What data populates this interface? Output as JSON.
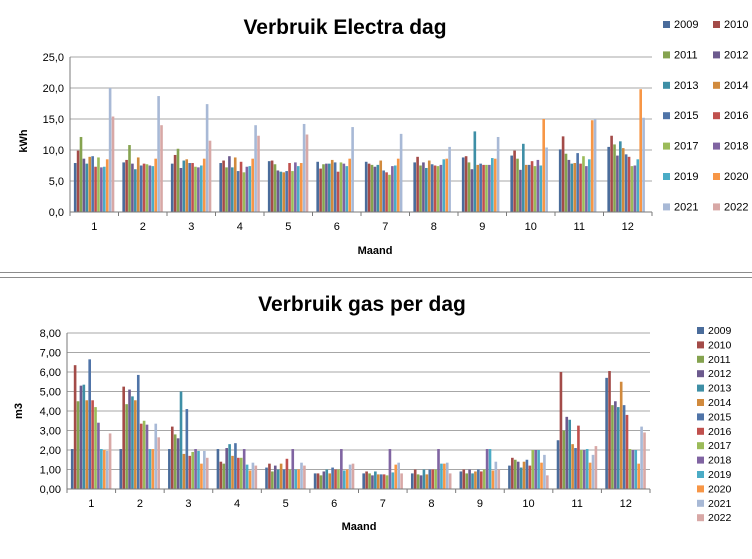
{
  "chart_data": [
    {
      "type": "bar",
      "title": "Verbruik Electra dag",
      "xlabel": "Maand",
      "ylabel": "kWh",
      "ylim": [
        0,
        25
      ],
      "yticks": [
        "0,0",
        "5,0",
        "10,0",
        "15,0",
        "20,0",
        "25,0"
      ],
      "grid": true,
      "legend_position": "right",
      "categories": [
        "1",
        "2",
        "3",
        "4",
        "5",
        "6",
        "7",
        "8",
        "9",
        "10",
        "11",
        "12"
      ],
      "series": [
        {
          "name": "2009",
          "color": "#4a6c9b",
          "values": [
            7.9,
            8.0,
            7.8,
            7.9,
            8.2,
            8.1,
            8.1,
            8.0,
            8.8,
            9.1,
            10.1,
            10.5
          ]
        },
        {
          "name": "2010",
          "color": "#a34b48",
          "values": [
            9.9,
            8.4,
            9.2,
            8.3,
            8.3,
            7.0,
            7.8,
            8.9,
            9.0,
            9.9,
            12.2,
            12.3
          ]
        },
        {
          "name": "2011",
          "color": "#85a34f",
          "values": [
            12.1,
            10.8,
            10.2,
            7.2,
            7.7,
            7.7,
            7.6,
            7.5,
            8.0,
            8.6,
            9.4,
            10.9
          ]
        },
        {
          "name": "2012",
          "color": "#6c5a8e",
          "values": [
            8.6,
            7.8,
            7.1,
            9.0,
            6.7,
            7.8,
            7.3,
            8.0,
            6.9,
            6.8,
            8.4,
            9.1
          ]
        },
        {
          "name": "2013",
          "color": "#3e8fa6",
          "values": [
            7.8,
            6.9,
            8.3,
            7.2,
            6.5,
            7.8,
            7.6,
            7.1,
            13.0,
            11.0,
            7.8,
            11.4
          ]
        },
        {
          "name": "2014",
          "color": "#d18a3d",
          "values": [
            8.9,
            8.8,
            8.5,
            8.8,
            6.4,
            8.4,
            8.3,
            8.3,
            7.6,
            7.6,
            7.9,
            10.3
          ]
        },
        {
          "name": "2015",
          "color": "#4f74a8",
          "values": [
            9.0,
            7.5,
            7.9,
            6.6,
            6.6,
            8.0,
            6.7,
            7.7,
            7.8,
            7.6,
            9.5,
            9.3
          ]
        },
        {
          "name": "2016",
          "color": "#c0504d",
          "values": [
            7.3,
            7.8,
            7.9,
            8.1,
            7.9,
            6.5,
            6.4,
            7.5,
            7.6,
            8.2,
            7.8,
            8.9
          ]
        },
        {
          "name": "2017",
          "color": "#9bbb59",
          "values": [
            8.8,
            7.7,
            7.3,
            6.4,
            6.6,
            8.0,
            6.0,
            7.4,
            7.6,
            7.4,
            9.0,
            7.4
          ]
        },
        {
          "name": "2018",
          "color": "#8064a2",
          "values": [
            7.2,
            7.5,
            7.2,
            7.3,
            8.0,
            7.8,
            7.4,
            7.6,
            7.6,
            8.4,
            7.4,
            7.5
          ]
        },
        {
          "name": "2019",
          "color": "#4bacc6",
          "values": [
            7.3,
            7.4,
            7.5,
            7.4,
            7.4,
            7.4,
            7.5,
            8.5,
            8.7,
            7.5,
            8.5,
            8.5
          ]
        },
        {
          "name": "2020",
          "color": "#f79646",
          "values": [
            8.5,
            8.6,
            8.6,
            8.6,
            7.9,
            8.6,
            8.6,
            8.6,
            8.6,
            15.0,
            14.8,
            19.8
          ]
        },
        {
          "name": "2021",
          "color": "#a8b9d6",
          "values": [
            20.0,
            18.7,
            17.4,
            14.0,
            14.2,
            13.7,
            12.6,
            10.5,
            12.1,
            10.4,
            15.0,
            15.2
          ]
        },
        {
          "name": "2022",
          "color": "#d8a8a6",
          "values": [
            15.4,
            14.0,
            11.5,
            12.3,
            12.5,
            0,
            0,
            0,
            0,
            0,
            0,
            0
          ]
        }
      ]
    },
    {
      "type": "bar",
      "title": "Verbruik gas per dag",
      "xlabel": "Maand",
      "ylabel": "m3",
      "ylim": [
        0,
        8
      ],
      "yticks": [
        "0,00",
        "1,00",
        "2,00",
        "3,00",
        "4,00",
        "5,00",
        "6,00",
        "7,00",
        "8,00"
      ],
      "grid": true,
      "legend_position": "right",
      "categories": [
        "1",
        "2",
        "3",
        "4",
        "5",
        "6",
        "7",
        "8",
        "9",
        "10",
        "11",
        "12"
      ],
      "series": [
        {
          "name": "2009",
          "color": "#4a6c9b",
          "values": [
            2.05,
            2.05,
            2.05,
            2.05,
            1.1,
            0.8,
            0.8,
            0.8,
            0.9,
            1.2,
            2.5,
            5.7
          ]
        },
        {
          "name": "2010",
          "color": "#a34b48",
          "values": [
            6.35,
            5.25,
            3.2,
            1.4,
            1.3,
            0.8,
            0.9,
            1.0,
            1.0,
            1.6,
            6.0,
            6.05
          ]
        },
        {
          "name": "2011",
          "color": "#85a34f",
          "values": [
            4.5,
            4.35,
            2.8,
            1.3,
            0.9,
            0.7,
            0.8,
            0.75,
            0.8,
            1.5,
            3.0,
            4.3
          ]
        },
        {
          "name": "2012",
          "color": "#6c5a8e",
          "values": [
            5.3,
            5.1,
            2.6,
            2.1,
            1.2,
            0.9,
            0.7,
            0.7,
            1.0,
            1.4,
            3.7,
            4.5
          ]
        },
        {
          "name": "2013",
          "color": "#3e8fa6",
          "values": [
            5.35,
            4.75,
            5.0,
            2.3,
            1.0,
            1.0,
            0.9,
            1.0,
            0.8,
            1.1,
            3.55,
            4.2
          ]
        },
        {
          "name": "2014",
          "color": "#d18a3d",
          "values": [
            4.55,
            4.55,
            1.8,
            1.7,
            1.3,
            0.8,
            0.75,
            0.75,
            0.9,
            1.4,
            2.3,
            5.5
          ]
        },
        {
          "name": "2015",
          "color": "#4f74a8",
          "values": [
            6.65,
            5.85,
            4.1,
            2.35,
            1.0,
            1.1,
            0.75,
            1.0,
            1.0,
            1.5,
            2.1,
            4.3
          ]
        },
        {
          "name": "2016",
          "color": "#c0504d",
          "values": [
            4.55,
            3.35,
            1.7,
            1.6,
            1.55,
            1.0,
            0.75,
            1.0,
            0.9,
            1.2,
            3.25,
            3.8
          ]
        },
        {
          "name": "2017",
          "color": "#9bbb59",
          "values": [
            4.2,
            3.5,
            1.9,
            1.6,
            1.0,
            1.0,
            0.7,
            1.0,
            1.0,
            2.0,
            2.0,
            2.05
          ]
        },
        {
          "name": "2018",
          "color": "#8064a2",
          "values": [
            3.4,
            3.3,
            2.05,
            2.05,
            2.05,
            2.05,
            2.05,
            2.05,
            2.05,
            2.0,
            2.0,
            2.0
          ]
        },
        {
          "name": "2019",
          "color": "#4bacc6",
          "values": [
            2.05,
            2.05,
            1.95,
            1.25,
            1.0,
            0.95,
            0.85,
            1.3,
            2.05,
            2.0,
            2.05,
            2.0
          ]
        },
        {
          "name": "2020",
          "color": "#f79646",
          "values": [
            2.0,
            2.05,
            1.3,
            0.95,
            1.0,
            1.0,
            1.25,
            1.3,
            0.95,
            1.35,
            1.35,
            1.3
          ]
        },
        {
          "name": "2021",
          "color": "#a8b9d6",
          "values": [
            1.95,
            3.35,
            1.95,
            1.35,
            1.35,
            1.25,
            1.35,
            1.35,
            1.4,
            1.75,
            1.75,
            3.2
          ]
        },
        {
          "name": "2022",
          "color": "#d8a8a6",
          "values": [
            2.85,
            2.65,
            1.6,
            1.2,
            1.2,
            1.3,
            0.8,
            0.8,
            1.0,
            0.7,
            2.2,
            2.9
          ]
        }
      ]
    }
  ]
}
